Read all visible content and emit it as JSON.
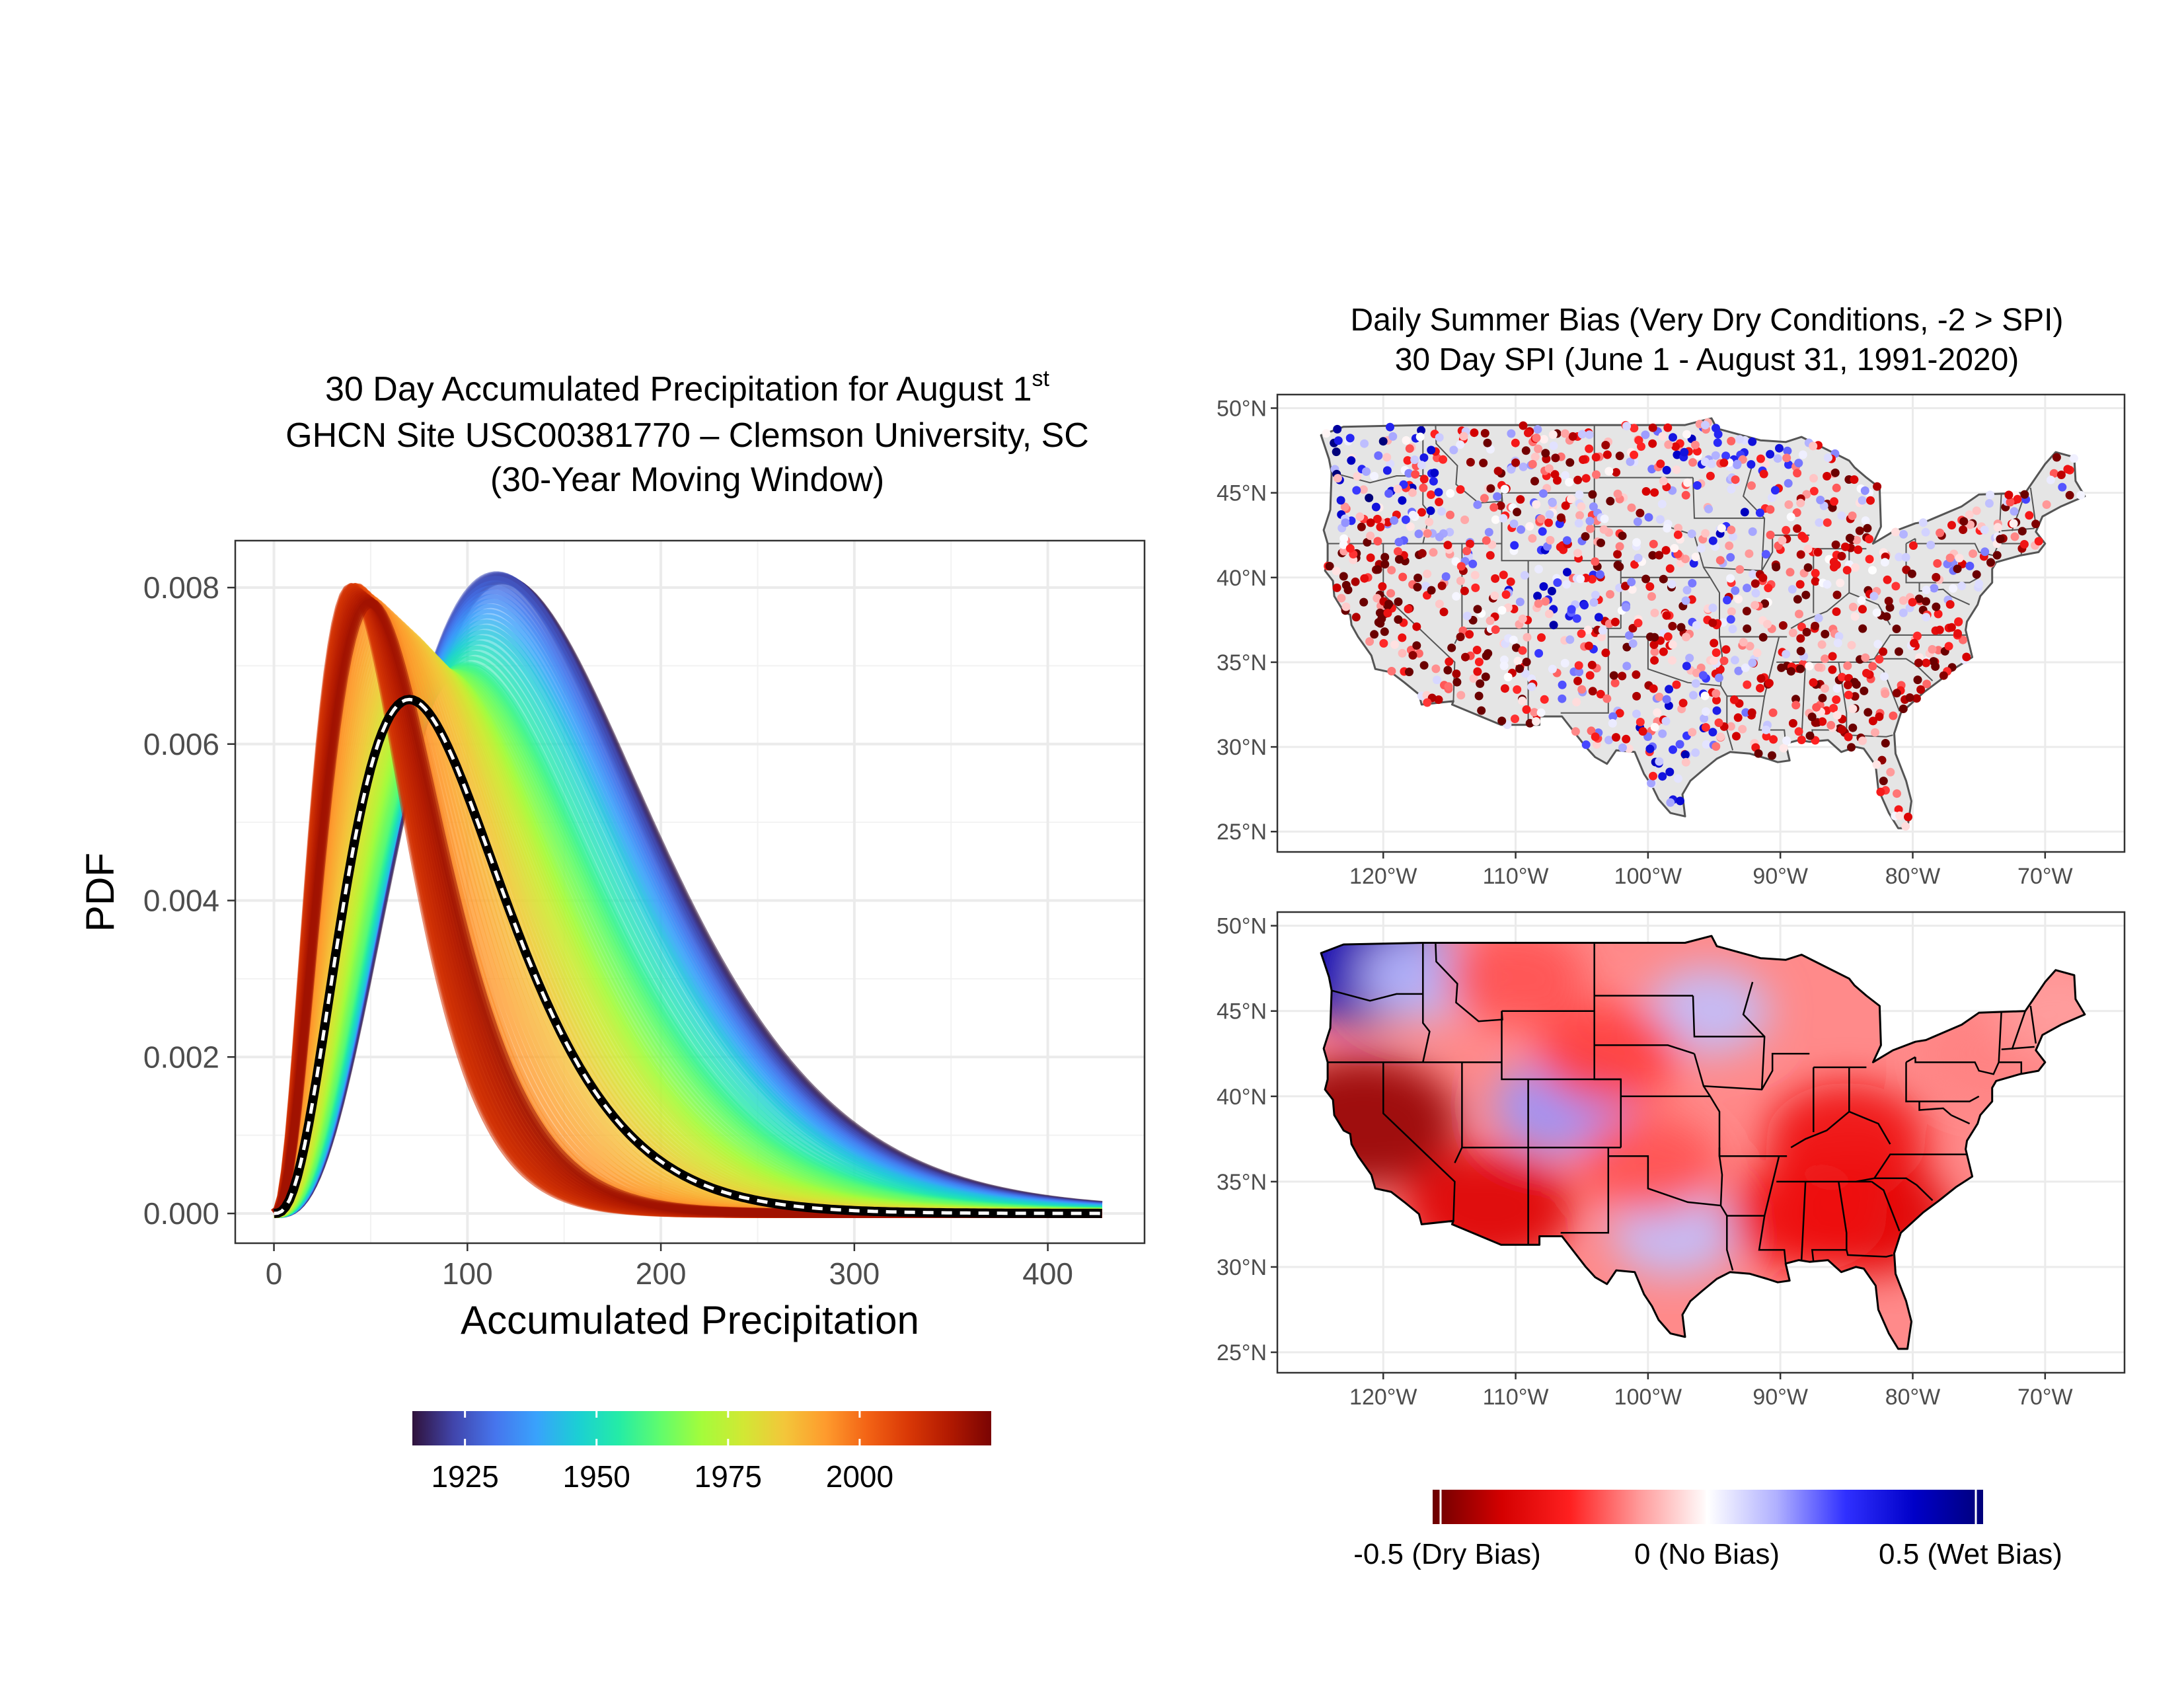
{
  "left_panel": {
    "title_line1": "30 Day Accumulated Precipitation for August 1",
    "title_sup": "st",
    "title_line2": "GHCN Site USC00381770 – Clemson University, SC",
    "title_line3": "(30-Year Moving Window)",
    "colorbar_ticks": [
      "1925",
      "1950",
      "1975",
      "2000"
    ]
  },
  "right_panel": {
    "title_line1": "Daily Summer Bias (Very Dry Conditions, -2 > SPI)",
    "title_line2": "30 Day SPI (June 1 - August 31, 1991-2020)",
    "colorbar_labels": [
      "-0.5 (Dry Bias)",
      "0 (No Bias)",
      "0.5 (Wet Bias)"
    ]
  },
  "colors": {
    "turbo": [
      "#30123b",
      "#4145ab",
      "#4675ed",
      "#39a2fc",
      "#1bcfd4",
      "#24eca6",
      "#61fc6c",
      "#a4fc3b",
      "#d1e834",
      "#f3c63a",
      "#fe9b2d",
      "#f36315",
      "#d93806",
      "#b11901",
      "#7a0403"
    ],
    "bias": [
      "#6b0000",
      "#d40000",
      "#ff2020",
      "#ff9a9a",
      "#ffffff",
      "#b0b0ff",
      "#3030ff",
      "#0000c8",
      "#00007a"
    ],
    "land": "#e5e5e5",
    "mean_curve": "#000000",
    "mean_dash": "#ffffff"
  },
  "chart_data": [
    {
      "type": "area",
      "description_series": "Gamma PDFs of 30-day accumulated precipitation, one per 30-year moving window, colored by window year",
      "xlabel": "Accumulated Precipitation",
      "ylabel": "PDF",
      "xlim": [
        -20,
        450
      ],
      "ylim": [
        -0.00038,
        0.0086
      ],
      "x_ticks": [
        0,
        100,
        200,
        300,
        400
      ],
      "y_ticks": [
        0.0,
        0.002,
        0.004,
        0.006,
        0.008
      ],
      "y_tick_labels": [
        "0.000",
        "0.002",
        "0.004",
        "0.006",
        "0.008"
      ],
      "x_tick_labels": [
        "0",
        "100",
        "200",
        "300",
        "400"
      ],
      "grid": true,
      "colorbar_range": [
        1915,
        2025
      ],
      "series": [
        {
          "year": 1915,
          "mode": 118,
          "peak": 0.0081
        },
        {
          "year": 1925,
          "mode": 115,
          "peak": 0.00815
        },
        {
          "year": 1935,
          "mode": 112,
          "peak": 0.0078
        },
        {
          "year": 1945,
          "mode": 108,
          "peak": 0.0074
        },
        {
          "year": 1955,
          "mode": 100,
          "peak": 0.007
        },
        {
          "year": 1962,
          "mode": 95,
          "peak": 0.0069
        },
        {
          "year": 1968,
          "mode": 88,
          "peak": 0.0069
        },
        {
          "year": 1975,
          "mode": 82,
          "peak": 0.007
        },
        {
          "year": 1980,
          "mode": 75,
          "peak": 0.0072
        },
        {
          "year": 1985,
          "mode": 68,
          "peak": 0.0074
        },
        {
          "year": 1990,
          "mode": 60,
          "peak": 0.0076
        },
        {
          "year": 1995,
          "mode": 52,
          "peak": 0.0078
        },
        {
          "year": 2000,
          "mode": 47,
          "peak": 0.0079
        },
        {
          "year": 2005,
          "mode": 43,
          "peak": 0.008
        },
        {
          "year": 2010,
          "mode": 40,
          "peak": 0.008
        },
        {
          "year": 2015,
          "mode": 45,
          "peak": 0.0079
        },
        {
          "year": 2020,
          "mode": 50,
          "peak": 0.0078
        }
      ],
      "mean_curve": {
        "mode": 70,
        "peak": 0.00657,
        "style": "black with white dashes",
        "x_end": 428
      }
    },
    {
      "type": "scatter",
      "title": "Daily Summer Bias (Very Dry Conditions, -2 > SPI)",
      "subtitle": "30 Day SPI (June 1 - August 31, 1991-2020)",
      "xlim": [
        -128,
        -64
      ],
      "ylim": [
        23.8,
        50.8
      ],
      "x_tick_labels": [
        "120°W",
        "110°W",
        "100°W",
        "90°W",
        "80°W",
        "70°W"
      ],
      "x_ticks": [
        -120,
        -110,
        -100,
        -90,
        -80,
        -70
      ],
      "y_tick_labels": [
        "25°N",
        "30°N",
        "35°N",
        "40°N",
        "45°N",
        "50°N"
      ],
      "y_ticks": [
        25,
        30,
        35,
        40,
        45,
        50
      ],
      "grid": true,
      "points_note": "station points colored by bias value over CONUS",
      "color_range": [
        -0.5,
        0.5
      ]
    },
    {
      "type": "heatmap",
      "xlim": [
        -128,
        -64
      ],
      "ylim": [
        23.8,
        50.8
      ],
      "x_tick_labels": [
        "120°W",
        "110°W",
        "100°W",
        "90°W",
        "80°W",
        "70°W"
      ],
      "x_ticks": [
        -120,
        -110,
        -100,
        -90,
        -80,
        -70
      ],
      "y_tick_labels": [
        "25°N",
        "30°N",
        "35°N",
        "40°N",
        "45°N",
        "50°N"
      ],
      "y_ticks": [
        25,
        30,
        35,
        40,
        45,
        50
      ],
      "grid": true,
      "color_range": [
        -0.5,
        0.5
      ],
      "features": [
        {
          "lon": -121.5,
          "lat": 48.0,
          "value": 0.4
        },
        {
          "lon": -117.0,
          "lat": 47.0,
          "value": 0.1
        },
        {
          "lon": -121.5,
          "lat": 38.5,
          "value": -0.45
        },
        {
          "lon": -112.0,
          "lat": 33.5,
          "value": -0.35
        },
        {
          "lon": -110.0,
          "lat": 47.0,
          "value": -0.2
        },
        {
          "lon": -106.5,
          "lat": 39.5,
          "value": 0.15
        },
        {
          "lon": -98.0,
          "lat": 32.0,
          "value": 0.1
        },
        {
          "lon": -95.5,
          "lat": 45.0,
          "value": 0.1
        },
        {
          "lon": -83.5,
          "lat": 33.0,
          "value": -0.35
        },
        {
          "lon": -88.0,
          "lat": 33.0,
          "value": -0.3
        },
        {
          "lon": -85.0,
          "lat": 37.5,
          "value": -0.3
        },
        {
          "lon": -103.0,
          "lat": 42.5,
          "value": -0.22
        },
        {
          "lon": -100.0,
          "lat": 36.0,
          "value": -0.2
        },
        {
          "lon": -74.0,
          "lat": 42.5,
          "value": -0.15
        },
        {
          "lon": -69.0,
          "lat": 45.0,
          "value": -0.12
        }
      ]
    }
  ]
}
